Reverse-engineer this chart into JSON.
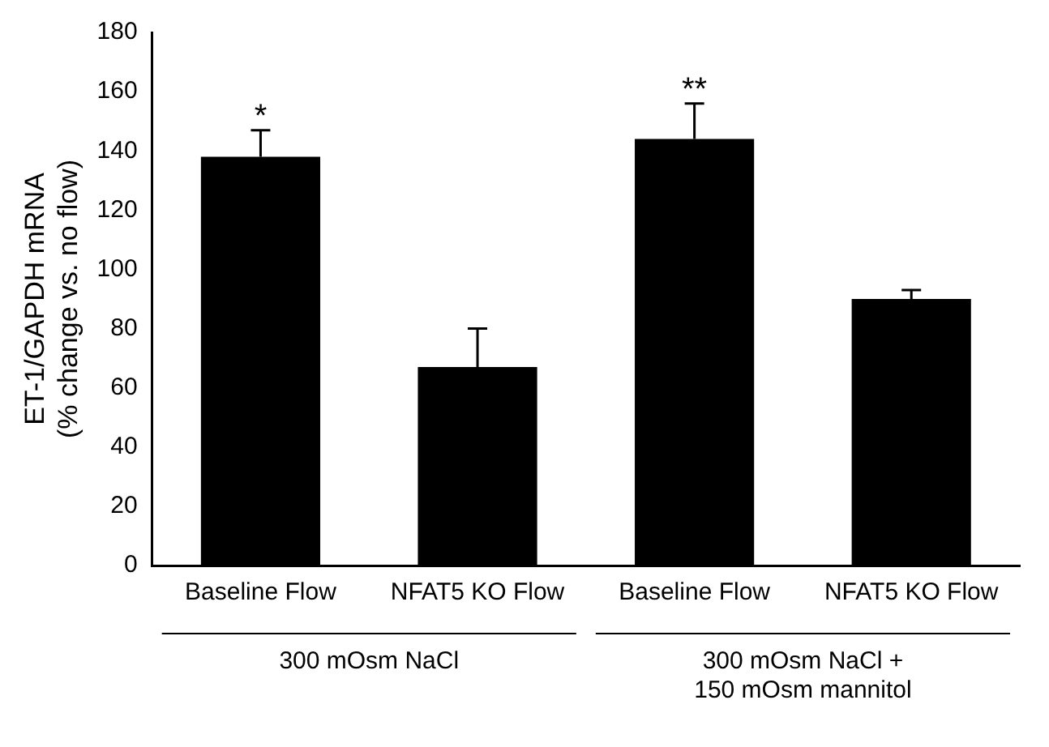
{
  "chart_data": {
    "type": "bar",
    "ylabel": "ET-1/GAPDH mRNA\n(% change vs. no flow)",
    "categories": [
      "Baseline Flow",
      "NFAT5 KO Flow",
      "Baseline Flow",
      "NFAT5 KO Flow"
    ],
    "values": [
      138,
      67,
      144,
      90
    ],
    "color": "#000000",
    "errors": [
      [
        138,
        147
      ],
      [
        67,
        80
      ],
      [
        144,
        156
      ],
      [
        90,
        93
      ]
    ],
    "ylim": [
      0,
      180
    ],
    "yticks": [
      0,
      20,
      40,
      60,
      80,
      100,
      120,
      140,
      160,
      180
    ],
    "grid": false,
    "legend": false,
    "annotations": [
      {
        "text": "*",
        "x": "Baseline Flow",
        "y": 147
      },
      "**",
      "300 mOsm NaCl",
      "300 mOsm NaCl +\n150 mOsm mannitol"
    ]
  }
}
